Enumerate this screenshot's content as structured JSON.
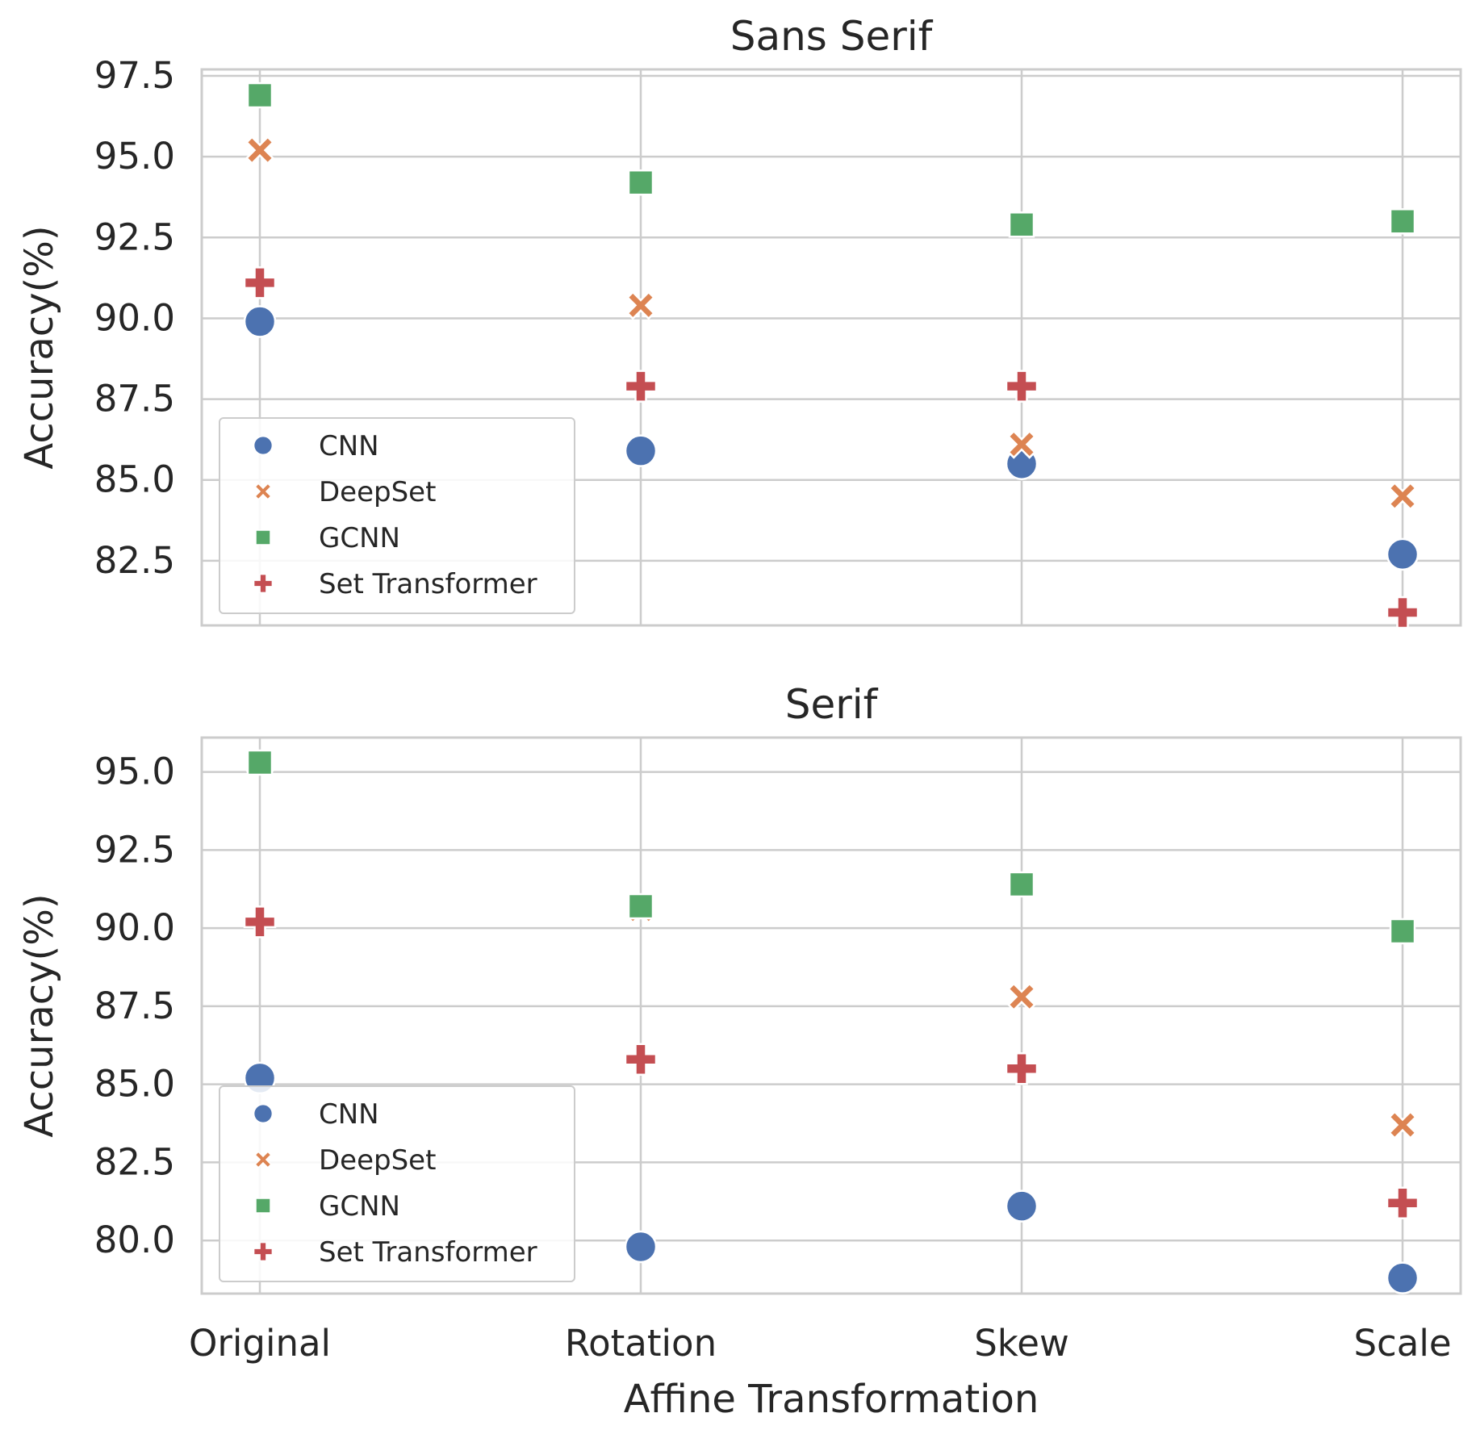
{
  "chart_data": [
    {
      "type": "scatter",
      "title": "Sans Serif",
      "xlabel": "",
      "ylabel": "Accuracy(%)",
      "categories": [
        "Original",
        "Rotation",
        "Skew",
        "Scale"
      ],
      "ylim": [
        80.5,
        97.7
      ],
      "yticks": [
        "82.5",
        "85.0",
        "87.5",
        "90.0",
        "92.5",
        "95.0",
        "97.5"
      ],
      "show_x_ticks": false,
      "grid": true,
      "legend_position": "lower-left",
      "series": [
        {
          "name": "CNN",
          "marker": "circle",
          "color": "#4c72b0",
          "values": [
            89.9,
            85.9,
            85.5,
            82.7
          ]
        },
        {
          "name": "DeepSet",
          "marker": "x",
          "color": "#dd8452",
          "values": [
            95.2,
            90.4,
            86.1,
            84.5
          ]
        },
        {
          "name": "GCNN",
          "marker": "square",
          "color": "#55a868",
          "values": [
            96.9,
            94.2,
            92.9,
            93.0
          ]
        },
        {
          "name": "Set Transformer",
          "marker": "plus",
          "color": "#c44e52",
          "values": [
            91.1,
            87.9,
            87.9,
            80.9
          ]
        }
      ]
    },
    {
      "type": "scatter",
      "title": "Serif",
      "xlabel": "Affine Transformation",
      "ylabel": "Accuracy(%)",
      "categories": [
        "Original",
        "Rotation",
        "Skew",
        "Scale"
      ],
      "ylim": [
        78.3,
        96.1
      ],
      "yticks": [
        "80.0",
        "82.5",
        "85.0",
        "87.5",
        "90.0",
        "92.5",
        "95.0"
      ],
      "show_x_ticks": true,
      "grid": true,
      "legend_position": "lower-left",
      "series": [
        {
          "name": "CNN",
          "marker": "circle",
          "color": "#4c72b0",
          "values": [
            85.2,
            79.8,
            81.1,
            78.8
          ]
        },
        {
          "name": "DeepSet",
          "marker": "x",
          "color": "#dd8452",
          "values": [
            95.3,
            90.6,
            87.8,
            83.7
          ]
        },
        {
          "name": "GCNN",
          "marker": "square",
          "color": "#55a868",
          "values": [
            95.3,
            90.7,
            91.4,
            89.9
          ]
        },
        {
          "name": "Set Transformer",
          "marker": "plus",
          "color": "#c44e52",
          "values": [
            90.2,
            85.8,
            85.5,
            81.2
          ]
        }
      ]
    }
  ]
}
